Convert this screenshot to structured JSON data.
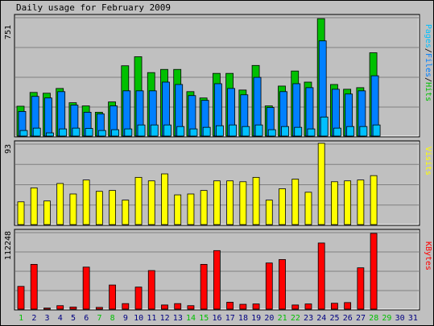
{
  "title": "Daily usage for February 2009",
  "colors": {
    "hits": "#00c000",
    "files": "#0080ff",
    "pages": "#00c0ff",
    "visits": "#ffff00",
    "kbytes": "#ff0000",
    "weekend_label": "#00c000",
    "weekday_label": "#000080",
    "background": "#c0c0c0",
    "panel": "#c0c0c0"
  },
  "chart_data": [
    {
      "type": "bar",
      "panel": "hits-files-pages",
      "legend": {
        "pages": "Pages",
        "sep1": "/",
        "files": "Files",
        "sep2": "/",
        "hits": "Hits"
      },
      "ymax_label": "751",
      "ymax": 751,
      "categories": [
        "1",
        "2",
        "3",
        "4",
        "5",
        "6",
        "7",
        "8",
        "9",
        "10",
        "11",
        "12",
        "13",
        "14",
        "15",
        "16",
        "17",
        "18",
        "19",
        "20",
        "21",
        "22",
        "23",
        "24",
        "25",
        "26",
        "27",
        "28",
        "29",
        "30",
        "31"
      ],
      "series": [
        {
          "name": "Hits",
          "values": [
            188,
            275,
            270,
            300,
            210,
            190,
            150,
            215,
            443,
            500,
            400,
            420,
            420,
            280,
            240,
            395,
            395,
            290,
            445,
            190,
            315,
            410,
            340,
            740,
            325,
            295,
            305,
            525,
            null,
            null,
            null
          ]
        },
        {
          "name": "Files",
          "values": [
            155,
            250,
            240,
            280,
            195,
            150,
            140,
            190,
            285,
            285,
            285,
            340,
            325,
            255,
            225,
            330,
            300,
            260,
            370,
            180,
            280,
            330,
            305,
            600,
            295,
            265,
            285,
            380,
            null,
            null,
            null
          ]
        },
        {
          "name": "Pages",
          "values": [
            35,
            50,
            20,
            45,
            50,
            48,
            35,
            40,
            45,
            70,
            70,
            70,
            60,
            45,
            55,
            65,
            70,
            60,
            70,
            40,
            60,
            55,
            45,
            120,
            50,
            60,
            60,
            70,
            null,
            null,
            null
          ]
        }
      ]
    },
    {
      "type": "bar",
      "panel": "visits",
      "legend": {
        "visits": "Visits"
      },
      "ymax_label": "93",
      "ymax": 93,
      "categories": [
        "1",
        "2",
        "3",
        "4",
        "5",
        "6",
        "7",
        "8",
        "9",
        "10",
        "11",
        "12",
        "13",
        "14",
        "15",
        "16",
        "17",
        "18",
        "19",
        "20",
        "21",
        "22",
        "23",
        "24",
        "25",
        "26",
        "27",
        "28",
        "29",
        "30",
        "31"
      ],
      "series": [
        {
          "name": "Visits",
          "values": [
            26,
            42,
            27,
            47,
            35,
            51,
            38,
            39,
            28,
            54,
            50,
            58,
            34,
            35,
            39,
            50,
            50,
            49,
            54,
            28,
            41,
            52,
            37,
            93,
            49,
            50,
            51,
            56,
            null,
            null,
            null
          ]
        }
      ]
    },
    {
      "type": "bar",
      "panel": "kbytes",
      "legend": {
        "kbytes": "KBytes"
      },
      "ymax_label": "112248",
      "ymax": 112248,
      "categories": [
        "1",
        "2",
        "3",
        "4",
        "5",
        "6",
        "7",
        "8",
        "9",
        "10",
        "11",
        "12",
        "13",
        "14",
        "15",
        "16",
        "17",
        "18",
        "19",
        "20",
        "21",
        "22",
        "23",
        "24",
        "25",
        "26",
        "27",
        "28",
        "29",
        "30",
        "31"
      ],
      "series": [
        {
          "name": "KBytes",
          "values": [
            33000,
            65000,
            1500,
            5000,
            3000,
            61000,
            2500,
            35000,
            8000,
            32000,
            56000,
            6000,
            8000,
            5000,
            65000,
            85000,
            10000,
            7000,
            7500,
            67000,
            72000,
            6000,
            7500,
            96000,
            8500,
            9500,
            60000,
            110000,
            null,
            null,
            null
          ]
        }
      ]
    }
  ],
  "x_labels": [
    "1",
    "2",
    "3",
    "4",
    "5",
    "6",
    "7",
    "8",
    "9",
    "10",
    "11",
    "12",
    "13",
    "14",
    "15",
    "16",
    "17",
    "18",
    "19",
    "20",
    "21",
    "22",
    "23",
    "24",
    "25",
    "26",
    "27",
    "28",
    "29",
    "30",
    "31"
  ],
  "weekend_days": [
    1,
    7,
    8,
    14,
    15,
    21,
    22,
    28,
    29
  ]
}
